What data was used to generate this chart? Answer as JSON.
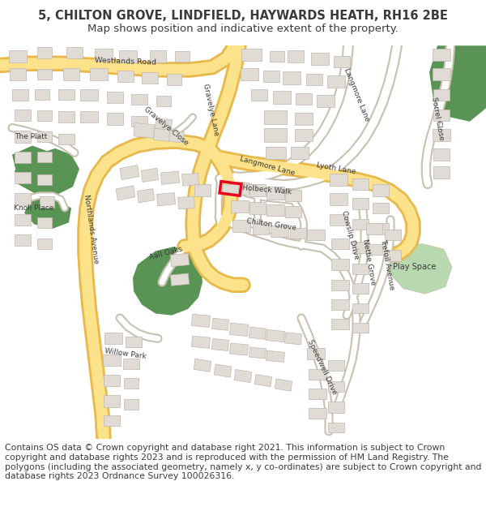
{
  "title_line1": "5, CHILTON GROVE, LINDFIELD, HAYWARDS HEATH, RH16 2BE",
  "title_line2": "Map shows position and indicative extent of the property.",
  "footer_text": "Contains OS data © Crown copyright and database right 2021. This information is subject to Crown copyright and database rights 2023 and is reproduced with the permission of HM Land Registry. The polygons (including the associated geometry, namely x, y co-ordinates) are subject to Crown copyright and database rights 2023 Ordnance Survey 100026316.",
  "title_fontsize": 10.5,
  "subtitle_fontsize": 9.5,
  "footer_fontsize": 7.8,
  "map_bg": "#f7f4ef",
  "road_yellow_fill": "#fce28a",
  "road_yellow_edge": "#e8b84b",
  "road_white_fill": "#ffffff",
  "road_white_edge": "#c8c0b0",
  "building_fill": "#e0dbd4",
  "building_edge": "#c0b8b0",
  "green_fill": "#5a9455",
  "green_fill2": "#a8d4a0",
  "play_green": "#b8d4a8",
  "highlight_red": "#e8001c",
  "text_color": "#3a3a3a",
  "label_fontsize": 7.0
}
